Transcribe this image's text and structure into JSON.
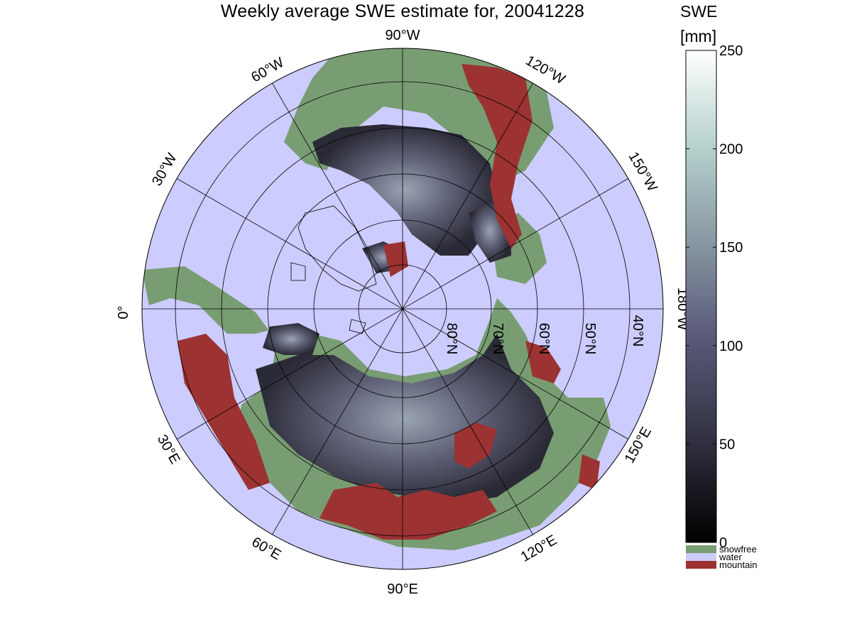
{
  "title": "Weekly average SWE estimate for, 20041228",
  "colorbar": {
    "title": "SWE",
    "unit": "[mm]",
    "ticks": [
      0,
      50,
      100,
      150,
      200,
      250
    ],
    "colors": {
      "low": "#000000",
      "mid": "#5a5a7a",
      "high": "#ffffff"
    }
  },
  "legend": {
    "items": [
      {
        "label": "snowfree",
        "color": "#799d72"
      },
      {
        "label": "water",
        "color": "#ccccff"
      },
      {
        "label": "mountain",
        "color": "#9c3232"
      }
    ]
  },
  "map": {
    "projection": "north polar stereographic",
    "ocean_color": "#ccccff",
    "longitude_labels": [
      {
        "text": "90°W",
        "lon": -90
      },
      {
        "text": "120°W",
        "lon": -120
      },
      {
        "text": "60°W",
        "lon": -60
      },
      {
        "text": "150°W",
        "lon": -150
      },
      {
        "text": "30°W",
        "lon": -30
      },
      {
        "text": "180°W",
        "lon": 180
      },
      {
        "text": "0°",
        "lon": 0
      },
      {
        "text": "30°E",
        "lon": 30
      },
      {
        "text": "150°E",
        "lon": 150
      },
      {
        "text": "60°E",
        "lon": 60
      },
      {
        "text": "120°E",
        "lon": 120
      },
      {
        "text": "90°E",
        "lon": 90
      }
    ],
    "latitude_labels": [
      {
        "text": "80°N",
        "lat": 80
      },
      {
        "text": "70°N",
        "lat": 70
      },
      {
        "text": "60°N",
        "lat": 60
      },
      {
        "text": "50°N",
        "lat": 50
      },
      {
        "text": "40°N",
        "lat": 40
      }
    ],
    "latitude_circles": [
      80,
      70,
      60,
      50,
      40,
      30
    ],
    "meridians_every_deg": 30
  }
}
